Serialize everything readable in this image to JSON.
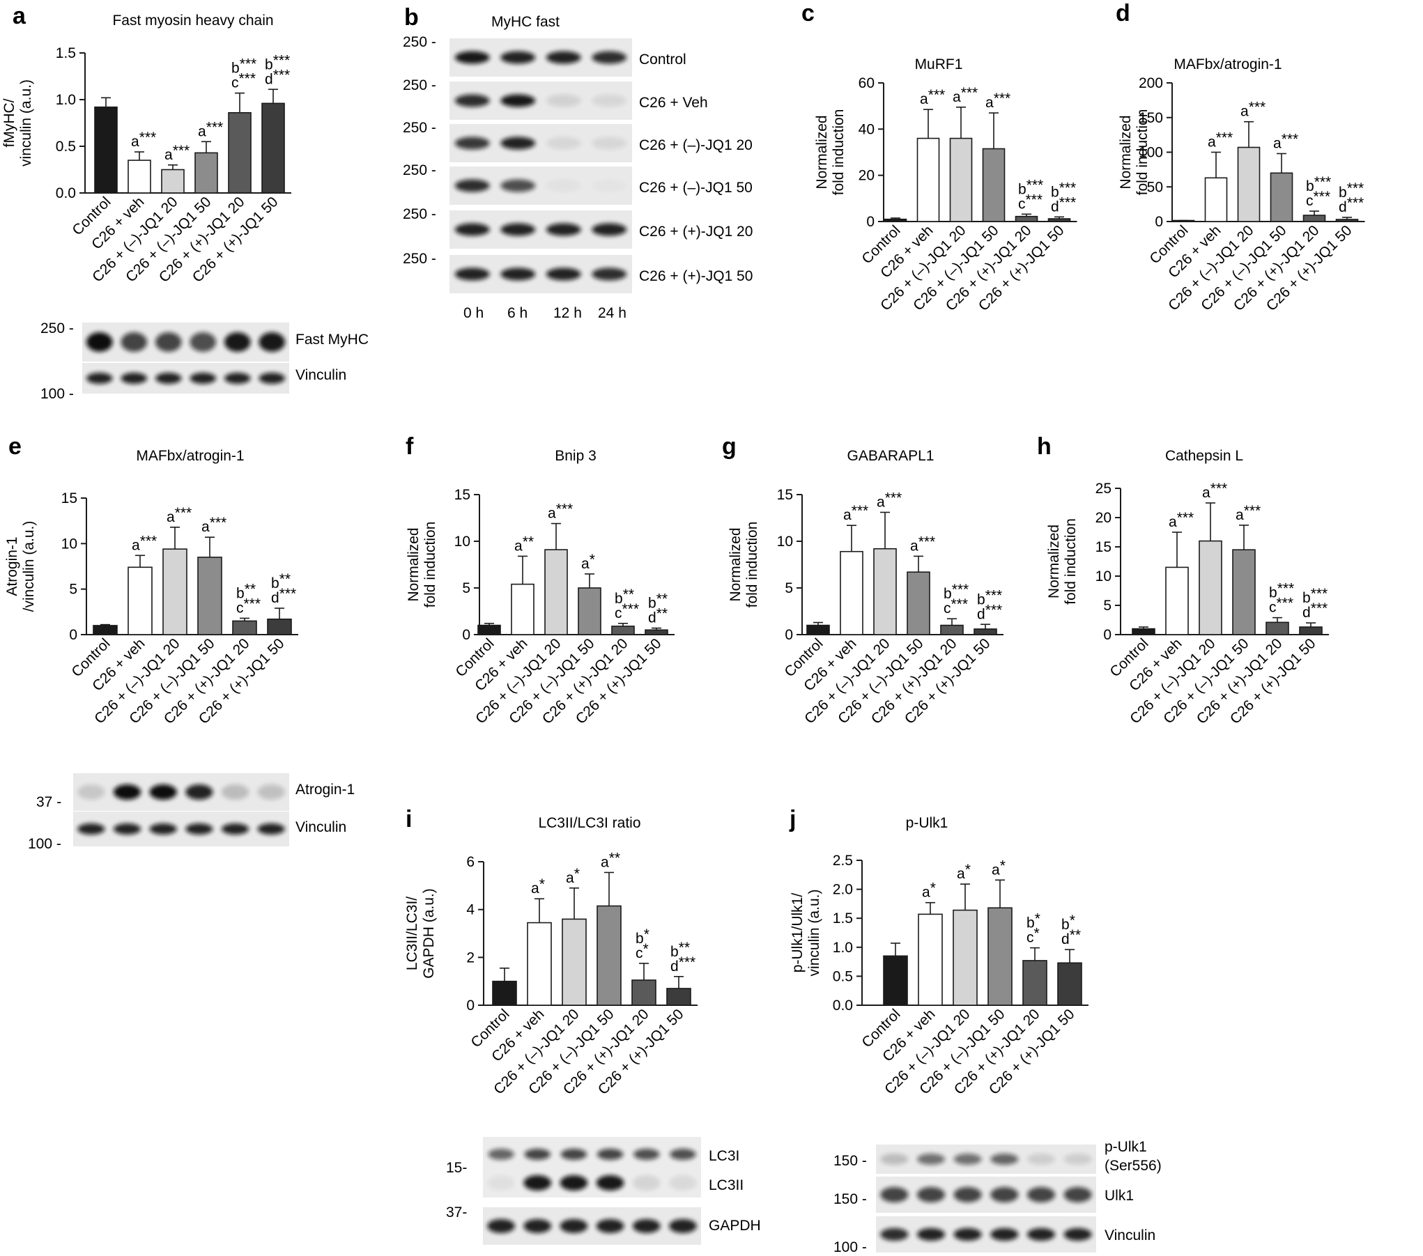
{
  "categories_a": [
    "Control",
    "C26 + veh",
    "C26 + (–)-JQ1 20",
    "C26 + (–)-JQ1 50",
    "C26 + (+)-JQ1 20",
    "C26 + (+)-JQ1 50"
  ],
  "categories_c": [
    "Control",
    "C26 + veh",
    "C26 + (–)-JQ1 20",
    "C26 + (–)-JQ1 50",
    "C26 + (+)-JQ1 20",
    "C26 + (+)-JQ1 50"
  ],
  "bar_colors": [
    "#1a1a1a",
    "#ffffff",
    "#d4d4d4",
    "#8c8c8c",
    "#5a5a5a",
    "#3c3c3c"
  ],
  "chart_data": [
    {
      "id": "a",
      "type": "bar",
      "panel_letter": "a",
      "title": "Fast myosin heavy chain",
      "ylabel": "fMyHC/\nvinculin (a.u.)",
      "ylim": [
        0,
        1.5
      ],
      "ticks": [
        0,
        0.5,
        1.0,
        1.5
      ],
      "tick_labels": [
        "0.0",
        "0.5",
        "1.0",
        "1.5"
      ],
      "values": [
        0.92,
        0.35,
        0.25,
        0.43,
        0.86,
        0.96
      ],
      "errors": [
        0.1,
        0.09,
        0.05,
        0.12,
        0.21,
        0.15
      ],
      "annotations": [
        [],
        [
          "a***"
        ],
        [
          "a***"
        ],
        [
          "a***"
        ],
        [
          "b***",
          "c***"
        ],
        [
          "b***",
          "d***"
        ]
      ]
    },
    {
      "id": "c",
      "type": "bar",
      "panel_letter": "c",
      "title": "MuRF1",
      "ylabel": "Normalized\nfold induction",
      "ylim": [
        0,
        60
      ],
      "ticks": [
        0,
        20,
        40,
        60
      ],
      "tick_labels": [
        "0",
        "20",
        "40",
        "60"
      ],
      "values": [
        1,
        36,
        36,
        31.5,
        2.2,
        1.2
      ],
      "errors": [
        0.5,
        12.5,
        13.5,
        15.5,
        1,
        0.8
      ],
      "annotations": [
        [],
        [
          "a***"
        ],
        [
          "a***"
        ],
        [
          "a***"
        ],
        [
          "b***",
          "c***"
        ],
        [
          "b***",
          "d***"
        ]
      ]
    },
    {
      "id": "d",
      "type": "bar",
      "panel_letter": "d",
      "title": "MAFbx/atrogin-1",
      "ylabel": "Normalized\nfold induction",
      "ylim": [
        0,
        200
      ],
      "ticks": [
        0,
        50,
        100,
        150,
        200
      ],
      "tick_labels": [
        "0",
        "50",
        "100",
        "150",
        "200"
      ],
      "values": [
        1,
        63,
        107,
        70,
        9,
        3
      ],
      "errors": [
        0.5,
        37,
        37,
        28,
        6,
        3
      ],
      "annotations": [
        [],
        [
          "a***"
        ],
        [
          "a***"
        ],
        [
          "a***"
        ],
        [
          "b***",
          "c***"
        ],
        [
          "b***",
          "d***"
        ]
      ]
    },
    {
      "id": "e",
      "type": "bar",
      "panel_letter": "e",
      "title": "MAFbx/atrogin-1",
      "ylabel": "Atrogin-1\n/vinculin (a.u.)",
      "ylim": [
        0,
        15
      ],
      "ticks": [
        0,
        5,
        10,
        15
      ],
      "tick_labels": [
        "0",
        "5",
        "10",
        "15"
      ],
      "values": [
        1,
        7.4,
        9.4,
        8.5,
        1.5,
        1.7
      ],
      "errors": [
        0.1,
        1.3,
        2.4,
        2.2,
        0.3,
        1.2
      ],
      "annotations": [
        [],
        [
          "a***"
        ],
        [
          "a***"
        ],
        [
          "a***"
        ],
        [
          "b**",
          "c***"
        ],
        [
          "b**",
          "d***"
        ]
      ]
    },
    {
      "id": "f",
      "type": "bar",
      "panel_letter": "f",
      "title": "Bnip 3",
      "ylabel": "Normalized\nfold induction",
      "ylim": [
        0,
        15
      ],
      "ticks": [
        0,
        5,
        10,
        15
      ],
      "tick_labels": [
        "0",
        "5",
        "10",
        "15"
      ],
      "values": [
        1,
        5.4,
        9.1,
        5,
        0.9,
        0.5
      ],
      "errors": [
        0.2,
        3,
        2.8,
        1.5,
        0.3,
        0.2
      ],
      "annotations": [
        [],
        [
          "a**"
        ],
        [
          "a***"
        ],
        [
          "a*"
        ],
        [
          "b**",
          "c***"
        ],
        [
          "b**",
          "d**"
        ]
      ]
    },
    {
      "id": "g",
      "type": "bar",
      "panel_letter": "g",
      "title": "GABARAPL1",
      "ylabel": "Normalized\nfold induction",
      "ylim": [
        0,
        15
      ],
      "ticks": [
        0,
        5,
        10,
        15
      ],
      "tick_labels": [
        "0",
        "5",
        "10",
        "15"
      ],
      "values": [
        1,
        8.9,
        9.2,
        6.7,
        1,
        0.6
      ],
      "errors": [
        0.3,
        2.8,
        3.9,
        1.7,
        0.7,
        0.5
      ],
      "annotations": [
        [],
        [
          "a***"
        ],
        [
          "a***"
        ],
        [
          "a***"
        ],
        [
          "b***",
          "c***"
        ],
        [
          "b***",
          "d***"
        ]
      ]
    },
    {
      "id": "h",
      "type": "bar",
      "panel_letter": "h",
      "title": "Cathepsin L",
      "ylabel": "Normalized\nfold induction",
      "ylim": [
        0,
        25
      ],
      "ticks": [
        0,
        5,
        10,
        15,
        20,
        25
      ],
      "tick_labels": [
        "0",
        "5",
        "10",
        "15",
        "20",
        "25"
      ],
      "values": [
        1,
        11.5,
        16,
        14.5,
        2.1,
        1.3
      ],
      "errors": [
        0.3,
        6,
        6.5,
        4.2,
        0.8,
        0.7
      ],
      "annotations": [
        [],
        [
          "a***"
        ],
        [
          "a***"
        ],
        [
          "a***"
        ],
        [
          "b***",
          "c***"
        ],
        [
          "b***",
          "d***"
        ]
      ]
    },
    {
      "id": "i",
      "type": "bar",
      "panel_letter": "i",
      "title": "LC3II/LC3I ratio",
      "ylabel": "LC3II/LC3I/\nGAPDH (a.u.)",
      "ylim": [
        0,
        6
      ],
      "ticks": [
        0,
        2,
        4,
        6
      ],
      "tick_labels": [
        "0",
        "2",
        "4",
        "6"
      ],
      "values": [
        1,
        3.45,
        3.6,
        4.15,
        1.05,
        0.7
      ],
      "errors": [
        0.55,
        1,
        1.3,
        1.4,
        0.7,
        0.5
      ],
      "annotations": [
        [],
        [
          "a*"
        ],
        [
          "a*"
        ],
        [
          "a**"
        ],
        [
          "b*",
          "c*"
        ],
        [
          "b**",
          "d***"
        ]
      ]
    },
    {
      "id": "j",
      "type": "bar",
      "panel_letter": "j",
      "title": "p-Ulk1",
      "ylabel": "p-Ulk1/Ulk1/\nvinculin (a.u.)",
      "ylim": [
        0,
        2.5
      ],
      "ticks": [
        0,
        0.5,
        1,
        1.5,
        2,
        2.5
      ],
      "tick_labels": [
        "0.0",
        "0.5",
        "1.0",
        "1.5",
        "2.0",
        "2.5"
      ],
      "values": [
        0.85,
        1.57,
        1.64,
        1.68,
        0.77,
        0.73
      ],
      "errors": [
        0.22,
        0.2,
        0.45,
        0.48,
        0.22,
        0.23
      ],
      "annotations": [
        [],
        [
          "a*"
        ],
        [
          "a*"
        ],
        [
          "a*"
        ],
        [
          "b*",
          "c*"
        ],
        [
          "b*",
          "d**"
        ]
      ]
    }
  ],
  "blots": {
    "a": {
      "mw": [
        "250",
        "100"
      ],
      "labels": [
        "Fast MyHC",
        "Vinculin"
      ],
      "intensity": [
        [
          1.0,
          0.75,
          0.75,
          0.7,
          0.95,
          0.95
        ],
        [
          0.9,
          0.9,
          0.9,
          0.9,
          0.9,
          0.9
        ]
      ]
    },
    "b": {
      "panel_letter": "b",
      "title": "MyHC fast",
      "mw": [
        "250",
        "250",
        "250",
        "250",
        "250",
        "250"
      ],
      "rows": [
        "Control",
        "C26 + Veh",
        "C26 + (–)-JQ1 20",
        "C26 + (–)-JQ1 50",
        "C26 + (+)-JQ1 20",
        "C26 + (+)-JQ1 50"
      ],
      "times": [
        "0 h",
        "6 h",
        "12 h",
        "24 h"
      ],
      "intensity": [
        [
          0.95,
          0.9,
          0.9,
          0.85
        ],
        [
          0.85,
          0.95,
          0.1,
          0.08
        ],
        [
          0.8,
          0.9,
          0.08,
          0.08
        ],
        [
          0.85,
          0.7,
          0.03,
          0.02
        ],
        [
          0.9,
          0.9,
          0.9,
          0.9
        ],
        [
          0.9,
          0.9,
          0.9,
          0.85
        ]
      ]
    },
    "e": {
      "mw": [
        "37",
        "100"
      ],
      "labels": [
        "Atrogin-1",
        "Vinculin"
      ],
      "intensity": [
        [
          0.15,
          1.0,
          1.0,
          0.9,
          0.2,
          0.18
        ],
        [
          0.9,
          0.9,
          0.9,
          0.9,
          0.9,
          0.9
        ]
      ]
    },
    "i": {
      "mw": [
        "15",
        "37"
      ],
      "labels": [
        "LC3I",
        "LC3II",
        "GAPDH"
      ],
      "intensity": [
        [
          0.6,
          0.75,
          0.75,
          0.75,
          0.7,
          0.7
        ],
        [
          0.05,
          0.95,
          0.95,
          0.95,
          0.1,
          0.08
        ],
        [
          0.9,
          0.9,
          0.9,
          0.9,
          0.9,
          0.9
        ]
      ]
    },
    "j": {
      "mw": [
        "150",
        "150",
        "100"
      ],
      "labels": [
        "p-Ulk1\n(Ser556)",
        "Ulk1",
        "Vinculin"
      ],
      "intensity": [
        [
          0.2,
          0.55,
          0.55,
          0.6,
          0.12,
          0.12
        ],
        [
          0.75,
          0.75,
          0.75,
          0.75,
          0.75,
          0.75
        ],
        [
          0.85,
          0.9,
          0.9,
          0.9,
          0.9,
          0.9
        ]
      ]
    }
  }
}
